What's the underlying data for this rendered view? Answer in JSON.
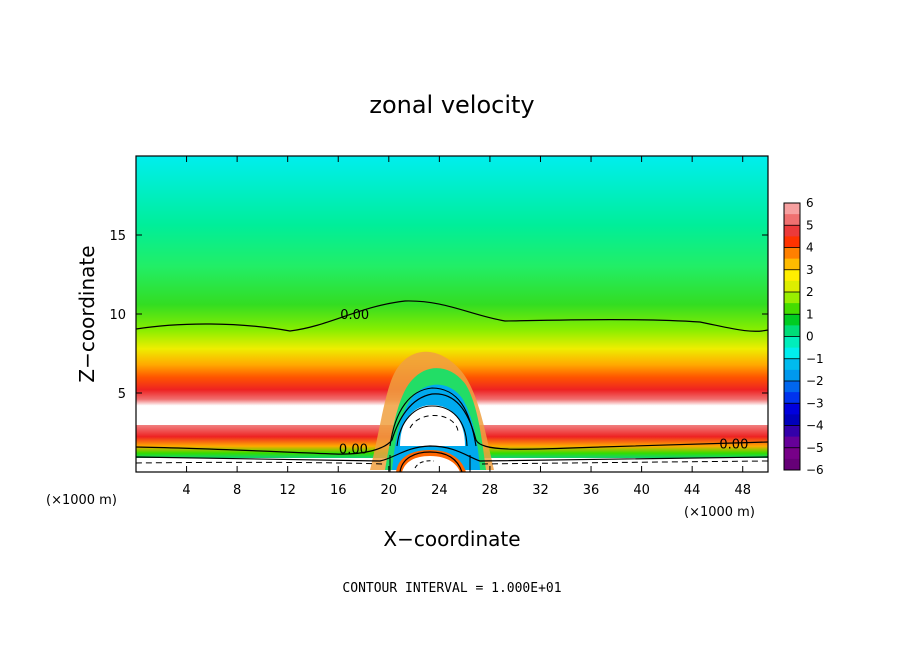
{
  "chart_data": {
    "type": "heatmap",
    "title": "zonal velocity",
    "xlabel": "X−coordinate",
    "ylabel": "Z−coordinate",
    "x_unit_left": "(×1000 m)",
    "x_unit_right": "(×1000 m)",
    "xlim": [
      0,
      50
    ],
    "ylim": [
      0,
      20
    ],
    "xticks": [
      4,
      8,
      12,
      16,
      20,
      24,
      28,
      32,
      36,
      40,
      44,
      48
    ],
    "yticks": [
      5,
      10,
      15
    ],
    "contour_interval_text": "CONTOUR INTERVAL = 1.000E+01",
    "contour_labels": [
      {
        "text": "0.00",
        "x": 17.3,
        "z": 10.0
      },
      {
        "text": "0.00",
        "x": 17.2,
        "z": 1.5
      },
      {
        "text": "0.00",
        "x": 47.3,
        "z": 1.8
      }
    ],
    "colorbar": {
      "ticks": [
        "6",
        "5",
        "4",
        "3",
        "2",
        "1",
        "0",
        "−1",
        "−2",
        "−3",
        "−4",
        "−5",
        "−6"
      ],
      "colors": [
        "#f7a0a0",
        "#f07070",
        "#ec3a3a",
        "#ff3300",
        "#ff8000",
        "#ffbb00",
        "#ffee00",
        "#ddee00",
        "#99ee00",
        "#44dd00",
        "#00cc22",
        "#00dd77",
        "#00eebb",
        "#00eeee",
        "#00bbee",
        "#0099ee",
        "#0066ee",
        "#0033ee",
        "#0000dd",
        "#0000bb",
        "#3300aa",
        "#660099",
        "#770088",
        "#660077"
      ]
    }
  }
}
